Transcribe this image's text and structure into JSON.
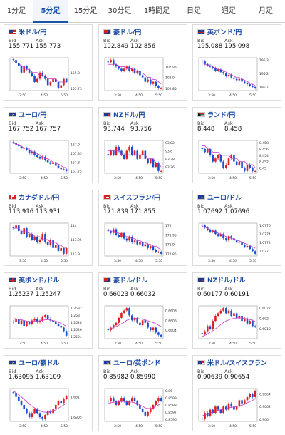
{
  "tabs": [
    {
      "label": "1分足",
      "active": false
    },
    {
      "label": "5分足",
      "active": true
    },
    {
      "label": "15分足",
      "active": false
    },
    {
      "label": "30分足",
      "active": false
    },
    {
      "label": "1時間足",
      "active": false
    },
    {
      "label": "日足",
      "active": false
    },
    {
      "label": "週足",
      "active": false
    },
    {
      "label": "月足",
      "active": false
    }
  ],
  "bid_label": "Bid",
  "ask_label": "Ask",
  "colors": {
    "up": "#e02020",
    "down": "#1a4fd0",
    "ma": "#cc33cc",
    "accent": "#1a55a8"
  },
  "pairs": [
    {
      "name": "米ドル/円",
      "flag": "us",
      "bid": "155.771",
      "ask": "155.773",
      "chart_data": {
        "type": "candlestick",
        "x_ticks": [
          "3:50",
          "4:50",
          "5:50"
        ],
        "y_ticks": [
          "155.8",
          "155.75"
        ],
        "closes": [
          155.84,
          155.83,
          155.82,
          155.8,
          155.82,
          155.81,
          155.8,
          155.79,
          155.77,
          155.78,
          155.8,
          155.79,
          155.78,
          155.76,
          155.77,
          155.78,
          155.77,
          155.75,
          155.76,
          155.78,
          155.77
        ],
        "ma": [
          155.84,
          155.83,
          155.83,
          155.82,
          155.82,
          155.81,
          155.81,
          155.8,
          155.8,
          155.8,
          155.79,
          155.79,
          155.79,
          155.78,
          155.78,
          155.78,
          155.78,
          155.77,
          155.77,
          155.77,
          155.77
        ]
      }
    },
    {
      "name": "豪ドル/円",
      "flag": "au",
      "bid": "102.849",
      "ask": "102.856",
      "chart_data": {
        "type": "candlestick",
        "x_ticks": [
          "3:50",
          "4:50",
          "5:50"
        ],
        "y_ticks": [
          "102.95",
          "102.9",
          "102.85"
        ],
        "closes": [
          102.97,
          102.98,
          102.96,
          102.95,
          102.94,
          102.93,
          102.94,
          102.95,
          102.93,
          102.94,
          102.92,
          102.93,
          102.91,
          102.9,
          102.88,
          102.89,
          102.87,
          102.88,
          102.86,
          102.85,
          102.85
        ],
        "ma": [
          102.96,
          102.96,
          102.96,
          102.96,
          102.95,
          102.95,
          102.95,
          102.94,
          102.94,
          102.94,
          102.93,
          102.93,
          102.92,
          102.92,
          102.91,
          102.9,
          102.9,
          102.89,
          102.89,
          102.88,
          102.87
        ]
      }
    },
    {
      "name": "英ポンド/円",
      "flag": "uk",
      "bid": "195.088",
      "ask": "195.098",
      "chart_data": {
        "type": "candlestick",
        "x_ticks": [
          "3:50",
          "4:50",
          "5:50"
        ],
        "y_ticks": [
          "195.3",
          "195.2",
          "195.1"
        ],
        "closes": [
          195.29,
          195.27,
          195.26,
          195.25,
          195.24,
          195.22,
          195.23,
          195.21,
          195.2,
          195.18,
          195.19,
          195.17,
          195.16,
          195.15,
          195.16,
          195.14,
          195.13,
          195.12,
          195.11,
          195.1,
          195.09
        ],
        "ma": [
          195.28,
          195.27,
          195.26,
          195.26,
          195.25,
          195.24,
          195.23,
          195.23,
          195.22,
          195.21,
          195.2,
          195.19,
          195.18,
          195.17,
          195.17,
          195.16,
          195.15,
          195.14,
          195.13,
          195.12,
          195.11
        ]
      }
    },
    {
      "name": "ユーロ/円",
      "flag": "eu",
      "bid": "167.752",
      "ask": "167.757",
      "chart_data": {
        "type": "candlestick",
        "x_ticks": [
          "3:50",
          "4:50",
          "5:50"
        ],
        "y_ticks": [
          "167.9",
          "167.85",
          "167.8",
          "167.75"
        ],
        "closes": [
          167.91,
          167.9,
          167.89,
          167.88,
          167.88,
          167.87,
          167.85,
          167.86,
          167.84,
          167.83,
          167.82,
          167.83,
          167.81,
          167.8,
          167.79,
          167.8,
          167.78,
          167.77,
          167.76,
          167.76,
          167.75
        ],
        "ma": [
          167.91,
          167.9,
          167.9,
          167.89,
          167.88,
          167.88,
          167.87,
          167.86,
          167.85,
          167.85,
          167.84,
          167.83,
          167.82,
          167.82,
          167.81,
          167.8,
          167.79,
          167.79,
          167.78,
          167.77,
          167.77
        ]
      }
    },
    {
      "name": "NZドル/円",
      "flag": "nz",
      "bid": "93.744",
      "ask": "93.756",
      "chart_data": {
        "type": "candlestick",
        "x_ticks": [
          "3:50",
          "4:50",
          "5:50"
        ],
        "y_ticks": [
          "93.82",
          "93.8",
          "93.78",
          "93.76"
        ],
        "closes": [
          93.79,
          93.8,
          93.79,
          93.81,
          93.8,
          93.79,
          93.78,
          93.8,
          93.81,
          93.79,
          93.8,
          93.78,
          93.79,
          93.8,
          93.78,
          93.77,
          93.78,
          93.76,
          93.77,
          93.75,
          93.75
        ],
        "ma": [
          93.8,
          93.8,
          93.8,
          93.8,
          93.8,
          93.79,
          93.79,
          93.79,
          93.79,
          93.79,
          93.79,
          93.79,
          93.79,
          93.79,
          93.79,
          93.78,
          93.78,
          93.78,
          93.77,
          93.77,
          93.76
        ]
      }
    },
    {
      "name": "ランド/円",
      "flag": "za",
      "bid": "8.448",
      "ask": "8.458",
      "chart_data": {
        "type": "candlestick",
        "x_ticks": [
          "3:50",
          "4:50",
          "5:50"
        ],
        "y_ticks": [
          "8.458",
          "8.456",
          "8.454",
          "8.452",
          "8.45"
        ],
        "closes": [
          8.456,
          8.455,
          8.456,
          8.454,
          8.452,
          8.453,
          8.454,
          8.452,
          8.45,
          8.451,
          8.453,
          8.454,
          8.452,
          8.451,
          8.452,
          8.45,
          8.449,
          8.451,
          8.45,
          8.449,
          8.449
        ],
        "ma": [
          8.457,
          8.457,
          8.456,
          8.456,
          8.455,
          8.455,
          8.455,
          8.454,
          8.454,
          8.454,
          8.454,
          8.453,
          8.453,
          8.453,
          8.452,
          8.452,
          8.452,
          8.451,
          8.451,
          8.451,
          8.45
        ]
      }
    },
    {
      "name": "カナダドル/円",
      "flag": "ca",
      "bid": "113.916",
      "ask": "113.931",
      "chart_data": {
        "type": "candlestick",
        "x_ticks": [
          "3:50",
          "4:50",
          "5:50"
        ],
        "y_ticks": [
          "114",
          "113.95",
          "113.9"
        ],
        "closes": [
          113.99,
          114.0,
          113.98,
          113.97,
          113.99,
          113.96,
          113.97,
          113.95,
          113.96,
          113.94,
          113.95,
          113.97,
          113.94,
          113.93,
          113.95,
          113.92,
          113.93,
          113.91,
          113.92,
          113.9,
          113.92
        ],
        "ma": [
          113.99,
          113.99,
          113.99,
          113.98,
          113.98,
          113.98,
          113.97,
          113.97,
          113.96,
          113.96,
          113.96,
          113.95,
          113.95,
          113.95,
          113.94,
          113.94,
          113.94,
          113.93,
          113.93,
          113.92,
          113.92
        ]
      }
    },
    {
      "name": "スイスフラン/円",
      "flag": "ch",
      "bid": "171.839",
      "ask": "171.855",
      "chart_data": {
        "type": "candlestick",
        "x_ticks": [
          "3:50",
          "4:50",
          "5:50"
        ],
        "y_ticks": [
          "172",
          "171.95",
          "171.9",
          "171.85"
        ],
        "closes": [
          171.97,
          171.96,
          171.98,
          171.95,
          171.94,
          171.96,
          171.93,
          171.92,
          171.94,
          171.91,
          171.92,
          171.9,
          171.91,
          171.89,
          171.9,
          171.88,
          171.89,
          171.87,
          171.86,
          171.86,
          171.85
        ],
        "ma": [
          171.98,
          171.97,
          171.97,
          171.96,
          171.96,
          171.95,
          171.95,
          171.94,
          171.94,
          171.93,
          171.93,
          171.92,
          171.92,
          171.91,
          171.91,
          171.9,
          171.9,
          171.89,
          171.89,
          171.88,
          171.87
        ]
      }
    },
    {
      "name": "ユーロ/ドル",
      "flag": "eu",
      "bid": "1.07692",
      "ask": "1.07696",
      "chart_data": {
        "type": "candlestick",
        "x_ticks": [
          "3:50",
          "4:50",
          "5:50"
        ],
        "y_ticks": [
          "1.0776",
          "1.0774",
          "1.0772",
          "1.077"
        ],
        "closes": [
          1.0776,
          1.07755,
          1.0775,
          1.07745,
          1.07748,
          1.0774,
          1.07735,
          1.0774,
          1.0773,
          1.07725,
          1.07735,
          1.0773,
          1.07725,
          1.0772,
          1.07722,
          1.07715,
          1.0771,
          1.07712,
          1.07705,
          1.077,
          1.07694
        ],
        "ma": [
          1.07758,
          1.07756,
          1.07753,
          1.0775,
          1.07748,
          1.07745,
          1.07742,
          1.0774,
          1.07737,
          1.07734,
          1.07732,
          1.0773,
          1.07728,
          1.07726,
          1.07724,
          1.07721,
          1.07718,
          1.07716,
          1.07713,
          1.0771,
          1.07707
        ]
      }
    },
    {
      "name": "英ポンド/ドル",
      "flag": "uk",
      "bid": "1.25237",
      "ask": "1.25247",
      "chart_data": {
        "type": "candlestick",
        "x_ticks": [
          "3:50",
          "4:50",
          "5:50"
        ],
        "y_ticks": [
          "1.2532",
          "1.253",
          "1.2528",
          "1.2526",
          "1.2524"
        ],
        "closes": [
          1.2528,
          1.2529,
          1.25275,
          1.25285,
          1.2527,
          1.2528,
          1.25275,
          1.25285,
          1.2529,
          1.2528,
          1.25285,
          1.25295,
          1.253,
          1.2529,
          1.25285,
          1.2528,
          1.25275,
          1.2527,
          1.25265,
          1.25255,
          1.25242
        ],
        "ma": [
          1.2529,
          1.2529,
          1.25288,
          1.25287,
          1.25285,
          1.25283,
          1.25282,
          1.25282,
          1.25283,
          1.25283,
          1.25284,
          1.25285,
          1.25287,
          1.25287,
          1.25286,
          1.25285,
          1.25283,
          1.2528,
          1.25277,
          1.25273,
          1.25268
        ]
      }
    },
    {
      "name": "豪ドル/ドル",
      "flag": "au",
      "bid": "0.66023",
      "ask": "0.66032",
      "chart_data": {
        "type": "candlestick",
        "x_ticks": [
          "3:50",
          "4:50",
          "5:50"
        ],
        "y_ticks": [
          "0.6608",
          "0.6606",
          "0.6604"
        ],
        "closes": [
          0.6604,
          0.66045,
          0.6605,
          0.66055,
          0.66065,
          0.66075,
          0.6608,
          0.66085,
          0.6607,
          0.6606,
          0.66065,
          0.66055,
          0.6605,
          0.6606,
          0.66055,
          0.66045,
          0.6604,
          0.66045,
          0.66035,
          0.6603,
          0.66027
        ],
        "ma": [
          0.66042,
          0.66043,
          0.66045,
          0.66047,
          0.6605,
          0.66053,
          0.66056,
          0.6606,
          0.66062,
          0.66063,
          0.66064,
          0.66064,
          0.66063,
          0.66062,
          0.66061,
          0.66059,
          0.66057,
          0.66055,
          0.66053,
          0.6605,
          0.66047
        ]
      }
    },
    {
      "name": "NZドル/ドル",
      "flag": "nz",
      "bid": "0.60177",
      "ask": "0.60191",
      "chart_data": {
        "type": "candlestick",
        "x_ticks": [
          "3:50",
          "4:50",
          "5:50"
        ],
        "y_ticks": [
          "0.6022",
          "0.602",
          "0.6018"
        ],
        "closes": [
          0.6017,
          0.60175,
          0.60185,
          0.6018,
          0.60195,
          0.60205,
          0.6021,
          0.60215,
          0.6022,
          0.6021,
          0.60215,
          0.60205,
          0.6021,
          0.602,
          0.60205,
          0.60195,
          0.602,
          0.6019,
          0.60195,
          0.60185,
          0.60184
        ],
        "ma": [
          0.60165,
          0.60167,
          0.6017,
          0.60173,
          0.60176,
          0.6018,
          0.60184,
          0.60188,
          0.60192,
          0.60195,
          0.60197,
          0.60199,
          0.602,
          0.60201,
          0.60201,
          0.60201,
          0.602,
          0.60199,
          0.60198,
          0.60196,
          0.60194
        ]
      }
    },
    {
      "name": "ユーロ/豪ドル",
      "flag": "eu",
      "bid": "1.63095",
      "ask": "1.63109",
      "chart_data": {
        "type": "candlestick",
        "x_ticks": [
          "3:50",
          "4:50",
          "5:50"
        ],
        "y_ticks": [
          "1.631",
          "1.6305"
        ],
        "closes": [
          1.6311,
          1.631,
          1.6309,
          1.6308,
          1.6307,
          1.6306,
          1.6305,
          1.6306,
          1.6307,
          1.6306,
          1.6305,
          1.63045,
          1.63055,
          1.63065,
          1.6306,
          1.6307,
          1.6308,
          1.6309,
          1.63085,
          1.63095,
          1.63102
        ],
        "ma": [
          1.63115,
          1.6311,
          1.63105,
          1.631,
          1.63094,
          1.63088,
          1.63082,
          1.63077,
          1.63073,
          1.63069,
          1.63066,
          1.63063,
          1.63062,
          1.63062,
          1.63063,
          1.63065,
          1.63068,
          1.63072,
          1.63076,
          1.6308,
          1.63085
        ]
      }
    },
    {
      "name": "ユーロ/英ポンド",
      "flag": "eu",
      "bid": "0.85982",
      "ask": "0.85990",
      "chart_data": {
        "type": "candlestick",
        "x_ticks": [
          "3:50",
          "4:50",
          "5:50"
        ],
        "y_ticks": [
          "0.86",
          "0.8599",
          "0.8598",
          "0.8597",
          "0.8596"
        ],
        "closes": [
          0.85985,
          0.8599,
          0.85985,
          0.8598,
          0.85985,
          0.8599,
          0.85985,
          0.8598,
          0.85985,
          0.8599,
          0.85985,
          0.8598,
          0.85975,
          0.8597,
          0.85965,
          0.8597,
          0.85975,
          0.8598,
          0.85985,
          0.8599,
          0.85986
        ],
        "ma": [
          0.85982,
          0.85983,
          0.85984,
          0.85984,
          0.85984,
          0.85985,
          0.85985,
          0.85985,
          0.85984,
          0.85984,
          0.85983,
          0.85982,
          0.8598,
          0.85978,
          0.85976,
          0.85975,
          0.85975,
          0.85976,
          0.85978,
          0.8598,
          0.85982
        ]
      }
    },
    {
      "name": "米ドル/スイスフラン",
      "flag": "us",
      "bid": "0.90639",
      "ask": "0.90654",
      "chart_data": {
        "type": "candlestick",
        "x_ticks": [
          "3:50",
          "4:50",
          "5:50"
        ],
        "y_ticks": [
          "0.9064",
          "0.9062",
          "0.906"
        ],
        "closes": [
          0.906,
          0.9061,
          0.90605,
          0.90615,
          0.9061,
          0.9062,
          0.90615,
          0.9061,
          0.9062,
          0.90615,
          0.90625,
          0.9062,
          0.90615,
          0.9062,
          0.9063,
          0.90625,
          0.9063,
          0.90635,
          0.9064,
          0.90635,
          0.90645
        ],
        "ma": [
          0.90605,
          0.90607,
          0.90608,
          0.9061,
          0.90611,
          0.90613,
          0.90614,
          0.90615,
          0.90616,
          0.90617,
          0.90618,
          0.90619,
          0.90619,
          0.9062,
          0.90621,
          0.90622,
          0.90624,
          0.90626,
          0.90628,
          0.9063,
          0.90632
        ]
      }
    }
  ]
}
